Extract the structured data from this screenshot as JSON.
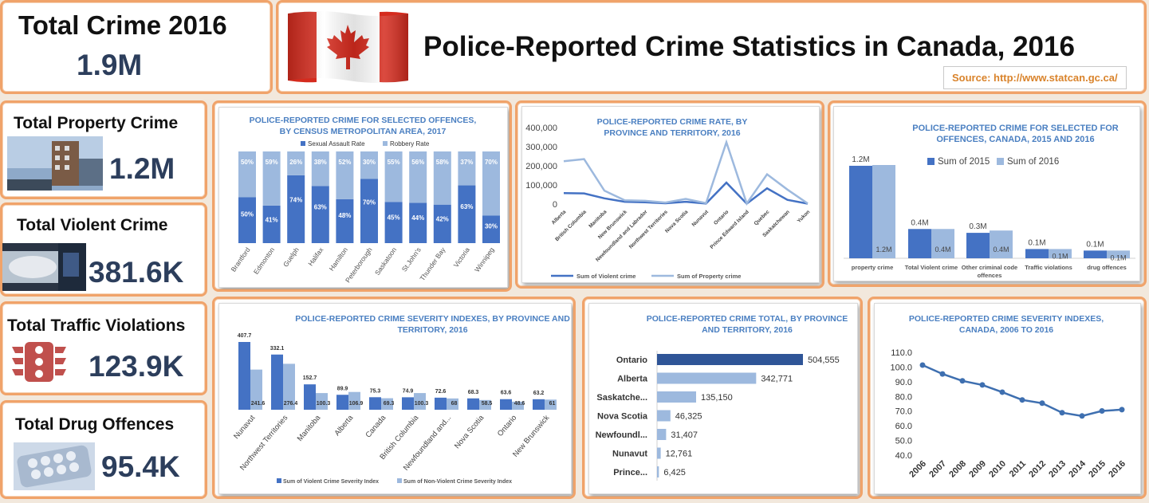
{
  "header": {
    "title": "Police-Reported Crime Statistics in Canada, 2016",
    "source": "Source: http://www.statcan.gc.ca/",
    "total_label": "Total Crime 2016",
    "total_value": "1.9M"
  },
  "kpis": [
    {
      "label": "Total Property Crime",
      "value": "1.2M",
      "icon": "building-photo-icon"
    },
    {
      "label": "Total Violent Crime",
      "value": "381.6K",
      "icon": "arrest-photo-icon"
    },
    {
      "label": "Total Traffic Violations",
      "value": "123.9K",
      "icon": "traffic-light-icon"
    },
    {
      "label": "Total Drug Offences",
      "value": "95.4K",
      "icon": "pills-photo-icon"
    }
  ],
  "colors": {
    "dark": "#4472c4",
    "light": "#9db9de",
    "accent_border": "#f0a36a",
    "title_blue": "#4a7fc1",
    "kpi_value": "#2c3e5c",
    "source": "#d9832b"
  },
  "chart_data": [
    {
      "id": "cma",
      "type": "bar",
      "stacked": "percent",
      "title": "POLICE-REPORTED CRIME FOR SELECTED OFFENCES, BY CENSUS METROPOLITAN AREA, 2017",
      "categories": [
        "Brantford",
        "Edmonton",
        "Guelph",
        "Halifax",
        "Hamilton",
        "Peterborough",
        "Saskatoon",
        "St.John's",
        "Thunder Bay",
        "Victoria",
        "Winnipeg"
      ],
      "series": [
        {
          "name": "Sexual Assault Rate",
          "values": [
            50,
            41,
            74,
            63,
            48,
            70,
            45,
            44,
            42,
            63,
            30
          ],
          "labels": [
            "50%",
            "41%",
            "74%",
            "63%",
            "48%",
            "70%",
            "45%",
            "44%",
            "42%",
            "63%",
            "30%"
          ]
        },
        {
          "name": "Robbery Rate",
          "values": [
            50,
            59,
            26,
            38,
            52,
            30,
            55,
            56,
            58,
            37,
            70
          ],
          "labels": [
            "50%",
            "59%",
            "26%",
            "38%",
            "52%",
            "30%",
            "55%",
            "56%",
            "58%",
            "37%",
            "70%"
          ]
        }
      ],
      "legend": "top"
    },
    {
      "id": "rate",
      "type": "line",
      "title": "POLICE-REPORTED CRIME RATE, BY PROVINCE AND TERRITORY, 2016",
      "categories": [
        "Alberta",
        "British Columbia",
        "Manitoba",
        "New Brunswick",
        "Newfoundland and Labrador",
        "Northwest Territories",
        "Nova Scotia",
        "Nunavut",
        "Ontario",
        "Prince Edward Island",
        "Quebec",
        "Saskatchewan",
        "Yukon"
      ],
      "series": [
        {
          "name": "Sum of Violent crime",
          "values": [
            57000,
            56000,
            30000,
            12000,
            9000,
            4000,
            12000,
            3000,
            112000,
            2000,
            82000,
            22000,
            2000
          ]
        },
        {
          "name": "Sum of Property crime",
          "values": [
            224000,
            235000,
            70000,
            20000,
            17000,
            8000,
            27000,
            5000,
            323000,
            3000,
            156000,
            76000,
            3000
          ]
        }
      ],
      "ylim": [
        0,
        400000
      ],
      "yticks": [
        "0",
        "100,000",
        "200,000",
        "300,000",
        "400,000"
      ],
      "legend": "bottom"
    },
    {
      "id": "canada",
      "type": "bar",
      "title": "POLICE-REPORTED CRIME FOR SELECTED  FOR OFFENCES, CANADA, 2015 AND 2016",
      "categories": [
        "property crime",
        "Total Violent crime",
        "Other criminal code offences",
        "Traffic violations",
        "drug offences"
      ],
      "series": [
        {
          "name": "Sum of 2015",
          "values": [
            1.2,
            0.38,
            0.33,
            0.12,
            0.1
          ],
          "labels": [
            "1.2M",
            "0.4M",
            "0.3M",
            "0.1M",
            "0.1M"
          ]
        },
        {
          "name": "Sum of 2016",
          "values": [
            1.21,
            0.38,
            0.36,
            0.12,
            0.1
          ],
          "labels": [
            "1.2M",
            "0.4M",
            "0.4M",
            "0.1M",
            "0.1M"
          ]
        }
      ],
      "legend": "top"
    },
    {
      "id": "severity",
      "type": "bar",
      "title": "POLICE-REPORTED CRIME SEVERITY INDEXES, BY PROVINCE AND TERRITORY, 2016",
      "categories": [
        "Nunavut",
        "Northwest Territories",
        "Manitoba",
        "Alberta",
        "Canada",
        "British Columbia",
        "Newfoundland and...",
        "Nova Scotia",
        "Ontario",
        "New Brunswick"
      ],
      "series": [
        {
          "name": "Sum of Violent Crime Severity Index",
          "values": [
            407.7,
            332.1,
            152.7,
            89.9,
            75.3,
            74.9,
            72.6,
            68.3,
            63.6,
            63.2
          ],
          "labels": [
            "407.7",
            "332.1",
            "152.7",
            "89.9",
            "75.3",
            "74.9",
            "72.6",
            "68.3",
            "63.6",
            "63.2"
          ]
        },
        {
          "name": "Sum of Non-Violent Crime Severity Index",
          "values": [
            241.6,
            276.4,
            100.3,
            106.9,
            69.3,
            100.3,
            68,
            58.5,
            48.6,
            61
          ],
          "labels": [
            "241.6",
            "276.4",
            "100.3",
            "106.9",
            "69.3",
            "100.3",
            "68",
            "58.5",
            "48.6",
            "61"
          ]
        }
      ],
      "legend": "bottom"
    },
    {
      "id": "total",
      "type": "bar",
      "orientation": "horizontal",
      "title": "POLICE-REPORTED CRIME TOTAL, BY PROVINCE AND TERRITORY, 2016",
      "categories": [
        "Ontario",
        "Alberta",
        "Saskatche...",
        "Nova Scotia",
        "Newfoundl...",
        "Nunavut",
        "Prince..."
      ],
      "values": [
        504555,
        342771,
        135150,
        46325,
        31407,
        12761,
        6425
      ],
      "labels": [
        "504,555",
        "342,771",
        "135,150",
        "46,325",
        "31,407",
        "12,761",
        "6,425"
      ]
    },
    {
      "id": "index",
      "type": "line",
      "title": "POLICE-REPORTED CRIME SEVERITY INDEXES, CANADA, 2006 TO 2016",
      "categories": [
        "2006",
        "2007",
        "2008",
        "2009",
        "2010",
        "2011",
        "2012",
        "2013",
        "2014",
        "2015",
        "2016"
      ],
      "values": [
        101.3,
        95.3,
        90.6,
        87.8,
        82.9,
        77.6,
        75.4,
        68.9,
        66.7,
        70.1,
        71.0
      ],
      "ylim": [
        40,
        110
      ],
      "yticks": [
        "40.0",
        "50.0",
        "60.0",
        "70.0",
        "80.0",
        "90.0",
        "100.0",
        "110.0"
      ]
    }
  ]
}
